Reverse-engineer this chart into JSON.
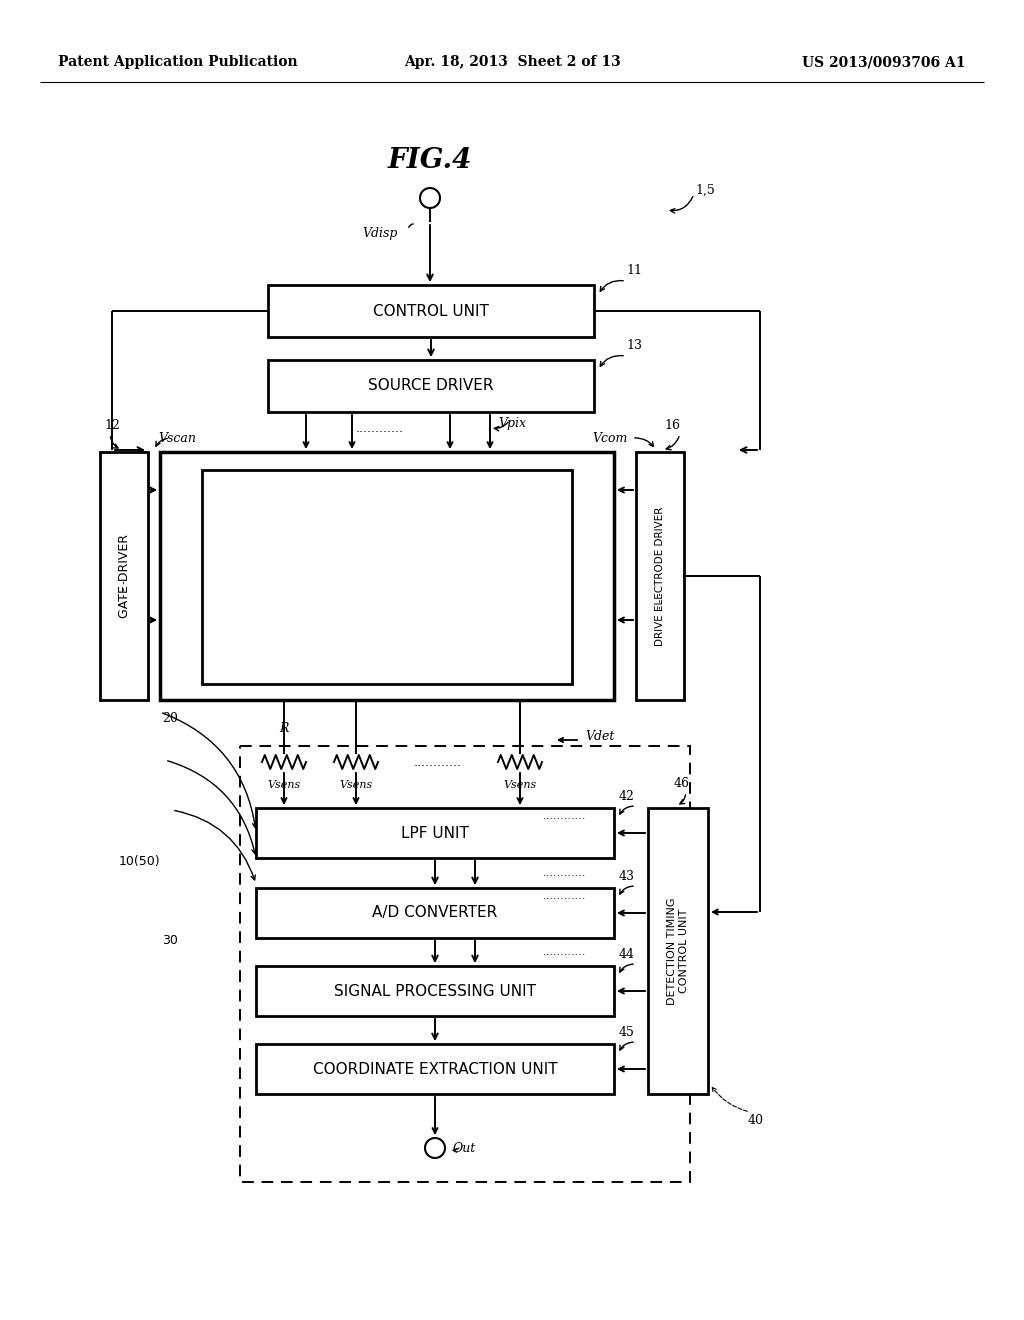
{
  "bg_color": "#ffffff",
  "header_left": "Patent Application Publication",
  "header_center": "Apr. 18, 2013  Sheet 2 of 13",
  "header_right": "US 2013/0093706 A1",
  "fig_title": "FIG.4"
}
